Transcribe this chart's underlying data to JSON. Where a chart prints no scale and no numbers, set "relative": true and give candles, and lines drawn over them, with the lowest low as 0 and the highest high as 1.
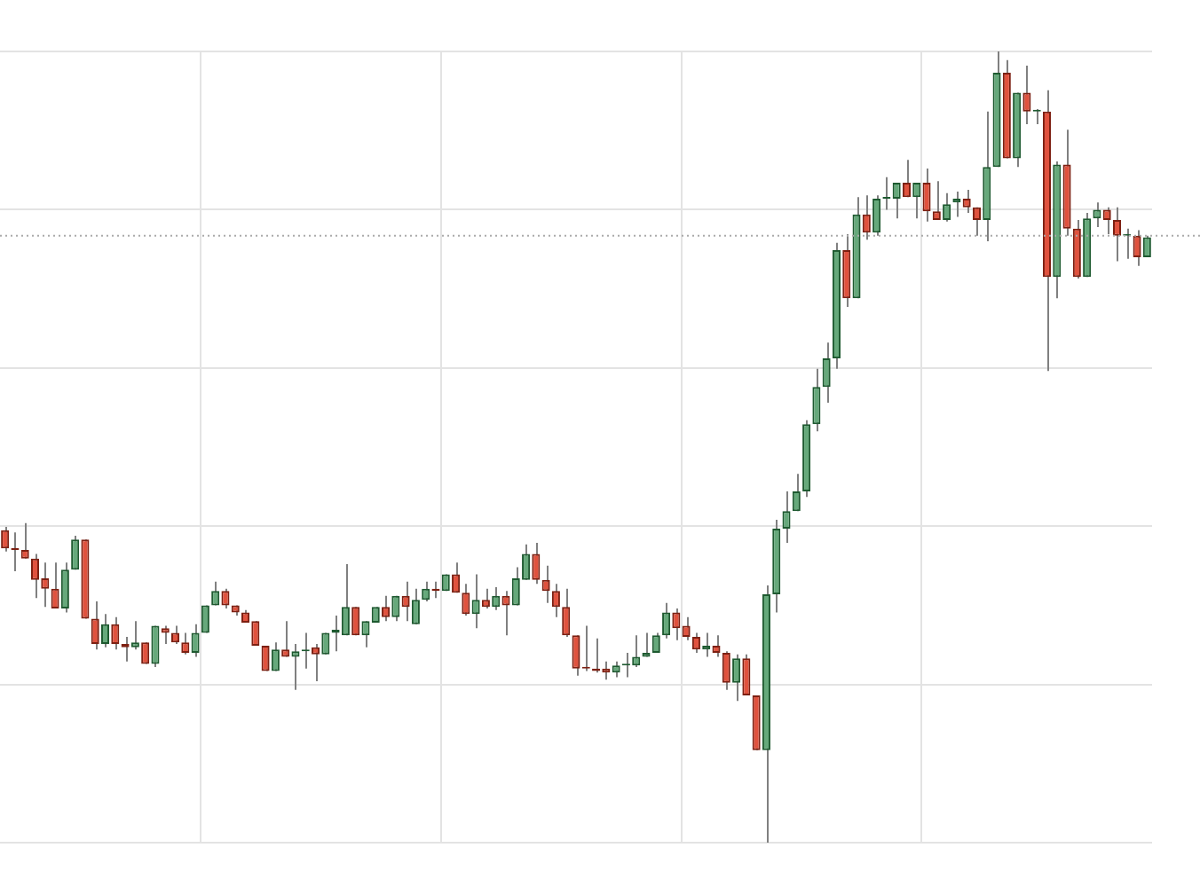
{
  "chart_data": {
    "type": "candlestick",
    "relative": true,
    "grid": true,
    "categories": [
      null,
      null,
      null,
      null,
      null,
      null,
      null,
      null,
      null,
      null,
      null,
      null,
      null,
      null,
      null,
      null,
      null,
      null,
      null,
      null,
      null,
      null,
      null,
      null,
      null,
      null,
      null,
      null,
      null,
      null,
      null,
      null,
      null,
      null,
      null,
      null,
      null,
      null,
      null,
      null,
      null,
      null,
      null,
      null,
      null,
      null,
      null,
      null,
      null,
      null,
      null,
      null,
      null,
      null,
      null,
      null,
      null,
      null,
      null,
      null,
      null,
      null,
      null,
      null,
      null,
      null,
      null,
      null,
      null,
      null,
      null,
      null,
      null,
      null,
      null,
      null,
      null,
      null,
      null,
      null,
      null,
      null,
      null,
      null,
      null,
      null,
      null,
      null,
      null,
      null,
      null,
      null,
      null,
      null,
      null,
      null,
      null,
      null,
      null,
      null,
      null,
      null,
      null,
      null,
      null,
      null,
      null,
      null,
      null,
      null,
      null,
      null,
      null,
      null,
      null
    ],
    "ohlc": [
      [
        0.395,
        0.399,
        0.368,
        0.372
      ],
      [
        0.372,
        0.392,
        0.343,
        0.37
      ],
      [
        0.37,
        0.404,
        0.359,
        0.359
      ],
      [
        0.359,
        0.365,
        0.309,
        0.332
      ],
      [
        0.334,
        0.354,
        0.298,
        0.321
      ],
      [
        0.321,
        0.354,
        0.296,
        0.296
      ],
      [
        0.296,
        0.354,
        0.291,
        0.345
      ],
      [
        0.345,
        0.388,
        0.345,
        0.383
      ],
      [
        0.383,
        0.383,
        0.283,
        0.283
      ],
      [
        0.283,
        0.305,
        0.244,
        0.251
      ],
      [
        0.251,
        0.289,
        0.247,
        0.276
      ],
      [
        0.276,
        0.285,
        0.244,
        0.251
      ],
      [
        0.251,
        0.26,
        0.229,
        0.247
      ],
      [
        0.247,
        0.28,
        0.244,
        0.253
      ],
      [
        0.253,
        0.253,
        0.226,
        0.226
      ],
      [
        0.226,
        0.274,
        0.222,
        0.274
      ],
      [
        0.271,
        0.274,
        0.251,
        0.265
      ],
      [
        0.265,
        0.274,
        0.251,
        0.253
      ],
      [
        0.253,
        0.265,
        0.238,
        0.24
      ],
      [
        0.24,
        0.276,
        0.235,
        0.265
      ],
      [
        0.265,
        0.3,
        0.265,
        0.3
      ],
      [
        0.3,
        0.33,
        0.3,
        0.318
      ],
      [
        0.318,
        0.321,
        0.296,
        0.3
      ],
      [
        0.3,
        0.3,
        0.287,
        0.291
      ],
      [
        0.291,
        0.294,
        0.278,
        0.278
      ],
      [
        0.28,
        0.28,
        0.249,
        0.249
      ],
      [
        0.249,
        0.249,
        0.217,
        0.217
      ],
      [
        0.217,
        0.253,
        0.217,
        0.244
      ],
      [
        0.244,
        0.28,
        0.235,
        0.235
      ],
      [
        0.235,
        0.251,
        0.193,
        0.242
      ],
      [
        0.242,
        0.265,
        0.22,
        0.244
      ],
      [
        0.247,
        0.251,
        0.204,
        0.238
      ],
      [
        0.238,
        0.265,
        0.238,
        0.265
      ],
      [
        0.265,
        0.287,
        0.242,
        0.269
      ],
      [
        0.262,
        0.352,
        0.262,
        0.298
      ],
      [
        0.298,
        0.298,
        0.262,
        0.262
      ],
      [
        0.262,
        0.28,
        0.247,
        0.28
      ],
      [
        0.278,
        0.298,
        0.278,
        0.298
      ],
      [
        0.298,
        0.312,
        0.28,
        0.285
      ],
      [
        0.285,
        0.312,
        0.28,
        0.312
      ],
      [
        0.312,
        0.33,
        0.28,
        0.298
      ],
      [
        0.276,
        0.321,
        0.276,
        0.307
      ],
      [
        0.307,
        0.33,
        0.305,
        0.321
      ],
      [
        0.321,
        0.33,
        0.309,
        0.318
      ],
      [
        0.318,
        0.339,
        0.318,
        0.339
      ],
      [
        0.339,
        0.354,
        0.316,
        0.316
      ],
      [
        0.316,
        0.327,
        0.287,
        0.289
      ],
      [
        0.289,
        0.339,
        0.271,
        0.307
      ],
      [
        0.307,
        0.321,
        0.296,
        0.298
      ],
      [
        0.298,
        0.323,
        0.294,
        0.312
      ],
      [
        0.312,
        0.318,
        0.262,
        0.3
      ],
      [
        0.3,
        0.348,
        0.3,
        0.334
      ],
      [
        0.332,
        0.377,
        0.332,
        0.365
      ],
      [
        0.365,
        0.379,
        0.327,
        0.332
      ],
      [
        0.332,
        0.35,
        0.303,
        0.318
      ],
      [
        0.318,
        0.327,
        0.285,
        0.298
      ],
      [
        0.298,
        0.321,
        0.26,
        0.262
      ],
      [
        0.262,
        0.262,
        0.211,
        0.22
      ],
      [
        0.222,
        0.274,
        0.217,
        0.22
      ],
      [
        0.22,
        0.258,
        0.215,
        0.217
      ],
      [
        0.22,
        0.229,
        0.206,
        0.215
      ],
      [
        0.215,
        0.229,
        0.209,
        0.224
      ],
      [
        0.224,
        0.24,
        0.209,
        0.226
      ],
      [
        0.224,
        0.262,
        0.222,
        0.235
      ],
      [
        0.235,
        0.265,
        0.235,
        0.24
      ],
      [
        0.24,
        0.265,
        0.24,
        0.262
      ],
      [
        0.262,
        0.303,
        0.258,
        0.291
      ],
      [
        0.291,
        0.296,
        0.256,
        0.271
      ],
      [
        0.274,
        0.285,
        0.256,
        0.26
      ],
      [
        0.26,
        0.265,
        0.24,
        0.244
      ],
      [
        0.244,
        0.265,
        0.235,
        0.249
      ],
      [
        0.249,
        0.262,
        0.235,
        0.24
      ],
      [
        0.24,
        0.242,
        0.193,
        0.202
      ],
      [
        0.202,
        0.238,
        0.179,
        0.233
      ],
      [
        0.233,
        0.238,
        0.186,
        0.186
      ],
      [
        0.186,
        0.186,
        0.117,
        0.117
      ],
      [
        0.117,
        0.325,
        0,
        0.314
      ],
      [
        0.314,
        0.408,
        0.291,
        0.397
      ],
      [
        0.397,
        0.444,
        0.379,
        0.419
      ],
      [
        0.419,
        0.466,
        0.419,
        0.444
      ],
      [
        0.444,
        0.534,
        0.437,
        0.529
      ],
      [
        0.529,
        0.599,
        0.52,
        0.576
      ],
      [
        0.576,
        0.632,
        0.556,
        0.612
      ],
      [
        0.612,
        0.758,
        0.599,
        0.749
      ],
      [
        0.749,
        0.769,
        0.677,
        0.688
      ],
      [
        0.688,
        0.816,
        0.688,
        0.794
      ],
      [
        0.794,
        0.818,
        0.762,
        0.771
      ],
      [
        0.771,
        0.818,
        0.767,
        0.814
      ],
      [
        0.814,
        0.841,
        0.8,
        0.816
      ],
      [
        0.814,
        0.834,
        0.789,
        0.834
      ],
      [
        0.834,
        0.863,
        0.816,
        0.816
      ],
      [
        0.816,
        0.834,
        0.789,
        0.834
      ],
      [
        0.834,
        0.852,
        0.785,
        0.798
      ],
      [
        0.798,
        0.836,
        0.787,
        0.787
      ],
      [
        0.787,
        0.821,
        0.785,
        0.807
      ],
      [
        0.809,
        0.823,
        0.791,
        0.814
      ],
      [
        0.814,
        0.825,
        0.796,
        0.803
      ],
      [
        0.803,
        0.803,
        0.767,
        0.787
      ],
      [
        0.787,
        0.924,
        0.76,
        0.854
      ],
      [
        0.854,
        1,
        0.854,
        0.973
      ],
      [
        0.973,
        0.989,
        0.865,
        0.865
      ],
      [
        0.865,
        0.948,
        0.854,
        0.948
      ],
      [
        0.948,
        0.982,
        0.908,
        0.924
      ],
      [
        0.924,
        0.927,
        0.908,
        0.926
      ],
      [
        0.924,
        0.951,
        0.596,
        0.715
      ],
      [
        0.715,
        0.861,
        0.688,
        0.857
      ],
      [
        0.857,
        0.901,
        0.767,
        0.776
      ],
      [
        0.776,
        0.787,
        0.713,
        0.715
      ],
      [
        0.715,
        0.796,
        0.715,
        0.789
      ],
      [
        0.789,
        0.809,
        0.778,
        0.8
      ],
      [
        0.8,
        0.803,
        0.769,
        0.787
      ],
      [
        0.787,
        0.803,
        0.735,
        0.767
      ],
      [
        0.767,
        0.776,
        0.738,
        0.767
      ],
      [
        0.767,
        0.774,
        0.729,
        0.74
      ],
      [
        0.74,
        0.767,
        0.74,
        0.765
      ]
    ],
    "ref_lines": [
      {
        "axis": "y",
        "value": 0.767,
        "color": "#aaaaaa",
        "line_style": "dotted"
      }
    ]
  }
}
